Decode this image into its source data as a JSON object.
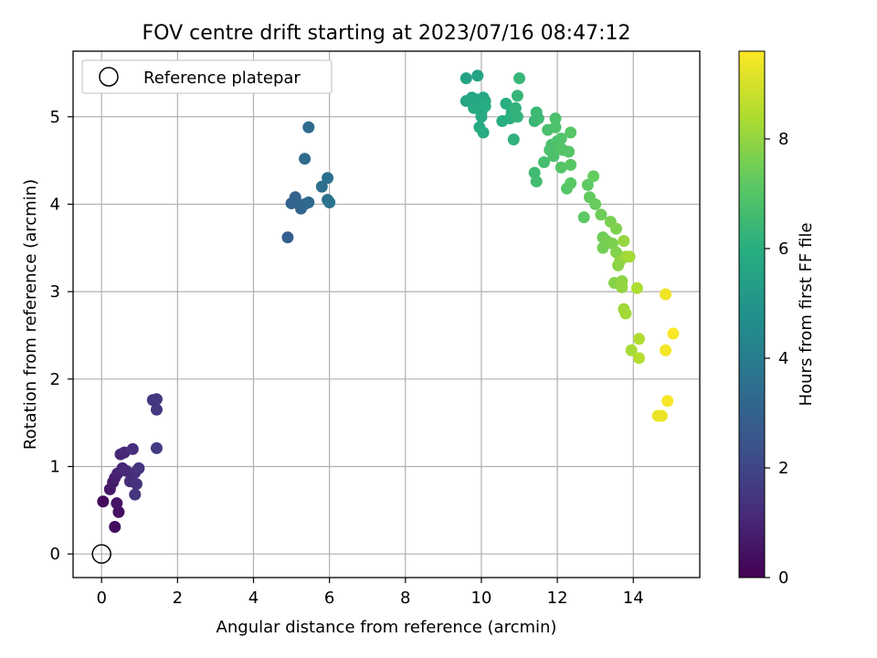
{
  "chart_data": {
    "type": "scatter",
    "title": "FOV centre drift starting at 2023/07/16 08:47:12",
    "xlabel": "Angular distance from reference (arcmin)",
    "ylabel": "Rotation from reference (arcmin)",
    "xlim": [
      -0.75,
      15.75
    ],
    "ylim": [
      -0.27,
      5.75
    ],
    "xticks": [
      0,
      2,
      4,
      6,
      8,
      10,
      12,
      14
    ],
    "yticks": [
      0,
      1,
      2,
      3,
      4,
      5
    ],
    "grid": true,
    "legend": {
      "placement": "top-left",
      "entries": [
        "Reference platepar"
      ]
    },
    "reference_point": {
      "x": 0,
      "y": 0
    },
    "colorbar": {
      "label": "Hours from first FF file",
      "range": [
        0,
        9.6
      ],
      "ticks": [
        0,
        2,
        4,
        6,
        8
      ],
      "colormap": "viridis"
    },
    "series": [
      {
        "points": [
          [
            0.04,
            0.6,
            0.2
          ],
          [
            0.35,
            0.31,
            0.3
          ],
          [
            0.45,
            0.48,
            0.4
          ],
          [
            0.4,
            0.58,
            0.5
          ],
          [
            0.22,
            0.74,
            0.6
          ],
          [
            0.3,
            0.82,
            0.7
          ],
          [
            0.35,
            0.87,
            0.8
          ],
          [
            0.42,
            0.92,
            0.9
          ],
          [
            0.55,
            0.98,
            1.0
          ],
          [
            0.5,
            1.14,
            1.05
          ],
          [
            0.6,
            1.16,
            1.1
          ],
          [
            0.65,
            0.95,
            1.15
          ],
          [
            0.75,
            0.83,
            1.2
          ],
          [
            0.82,
            1.2,
            1.25
          ],
          [
            0.88,
            0.93,
            1.3
          ],
          [
            0.92,
            0.8,
            1.35
          ],
          [
            0.98,
            0.98,
            1.4
          ],
          [
            0.88,
            0.68,
            1.45
          ],
          [
            1.35,
            1.76,
            1.5
          ],
          [
            1.45,
            1.77,
            1.55
          ],
          [
            1.45,
            1.65,
            1.6
          ],
          [
            1.45,
            1.21,
            1.65
          ],
          [
            4.9,
            3.62,
            2.9
          ],
          [
            5.0,
            4.01,
            3.0
          ],
          [
            5.1,
            4.08,
            3.05
          ],
          [
            5.2,
            4.0,
            3.1
          ],
          [
            5.25,
            3.95,
            3.15
          ],
          [
            5.35,
            4.0,
            3.2
          ],
          [
            5.45,
            4.02,
            3.25
          ],
          [
            5.35,
            4.52,
            3.3
          ],
          [
            5.45,
            4.88,
            3.35
          ],
          [
            5.8,
            4.2,
            3.45
          ],
          [
            5.95,
            4.3,
            3.5
          ],
          [
            5.95,
            4.05,
            3.55
          ],
          [
            6.0,
            4.02,
            3.6
          ],
          [
            9.6,
            5.44,
            5.5
          ],
          [
            9.9,
            5.47,
            5.55
          ],
          [
            9.6,
            5.18,
            5.6
          ],
          [
            9.75,
            5.22,
            5.62
          ],
          [
            9.85,
            5.2,
            5.65
          ],
          [
            9.9,
            5.15,
            5.67
          ],
          [
            9.95,
            5.1,
            5.7
          ],
          [
            10.0,
            5.05,
            5.72
          ],
          [
            10.05,
            5.22,
            5.75
          ],
          [
            10.1,
            5.18,
            5.77
          ],
          [
            9.8,
            5.1,
            5.8
          ],
          [
            10.0,
            5.0,
            5.82
          ],
          [
            9.95,
            4.88,
            5.85
          ],
          [
            10.05,
            4.82,
            5.87
          ],
          [
            10.1,
            5.12,
            5.9
          ],
          [
            10.55,
            4.95,
            5.95
          ],
          [
            10.65,
            5.15,
            6.0
          ],
          [
            10.75,
            4.98,
            6.05
          ],
          [
            10.8,
            5.05,
            6.1
          ],
          [
            10.85,
            4.74,
            6.15
          ],
          [
            10.9,
            5.1,
            6.2
          ],
          [
            10.95,
            5.0,
            6.25
          ],
          [
            10.95,
            5.24,
            6.3
          ],
          [
            11.0,
            5.44,
            6.35
          ],
          [
            11.4,
            4.95,
            6.4
          ],
          [
            11.45,
            5.05,
            6.45
          ],
          [
            11.5,
            4.98,
            6.5
          ],
          [
            11.4,
            4.36,
            6.55
          ],
          [
            11.45,
            4.26,
            6.6
          ],
          [
            11.65,
            4.48,
            6.65
          ],
          [
            11.75,
            4.85,
            6.7
          ],
          [
            11.8,
            4.62,
            6.75
          ],
          [
            11.85,
            4.68,
            6.77
          ],
          [
            11.9,
            4.55,
            6.8
          ],
          [
            11.95,
            4.98,
            6.82
          ],
          [
            11.95,
            4.88,
            6.85
          ],
          [
            12.0,
            4.72,
            6.87
          ],
          [
            12.05,
            4.65,
            6.9
          ],
          [
            12.1,
            4.75,
            6.92
          ],
          [
            12.1,
            4.42,
            6.95
          ],
          [
            12.15,
            4.62,
            6.97
          ],
          [
            12.25,
            4.18,
            7.0
          ],
          [
            12.3,
            4.6,
            7.02
          ],
          [
            12.35,
            4.82,
            7.05
          ],
          [
            12.35,
            4.45,
            7.07
          ],
          [
            12.35,
            4.24,
            7.1
          ],
          [
            12.7,
            3.85,
            7.15
          ],
          [
            12.8,
            4.22,
            7.2
          ],
          [
            12.85,
            4.08,
            7.25
          ],
          [
            12.95,
            4.32,
            7.3
          ],
          [
            13.0,
            4.0,
            7.35
          ],
          [
            13.15,
            3.88,
            7.4
          ],
          [
            13.2,
            3.62,
            7.45
          ],
          [
            13.2,
            3.5,
            7.5
          ],
          [
            13.3,
            3.58,
            7.55
          ],
          [
            13.4,
            3.8,
            7.6
          ],
          [
            13.45,
            3.55,
            7.65
          ],
          [
            13.55,
            3.72,
            7.7
          ],
          [
            13.55,
            3.45,
            7.75
          ],
          [
            13.5,
            3.1,
            7.8
          ],
          [
            13.6,
            3.3,
            7.85
          ],
          [
            13.65,
            3.35,
            7.9
          ],
          [
            13.7,
            3.12,
            7.95
          ],
          [
            13.7,
            3.05,
            8.0
          ],
          [
            13.75,
            3.58,
            8.05
          ],
          [
            13.8,
            3.4,
            8.1
          ],
          [
            13.75,
            2.8,
            8.15
          ],
          [
            13.8,
            2.75,
            8.2
          ],
          [
            13.9,
            3.4,
            8.25
          ],
          [
            13.95,
            2.33,
            8.3
          ],
          [
            14.1,
            3.04,
            8.4
          ],
          [
            14.15,
            2.46,
            8.45
          ],
          [
            14.15,
            2.24,
            8.5
          ],
          [
            14.65,
            1.58,
            9.3
          ],
          [
            14.75,
            1.58,
            9.35
          ],
          [
            14.85,
            2.97,
            9.4
          ],
          [
            14.85,
            2.33,
            9.45
          ],
          [
            14.9,
            1.75,
            9.5
          ],
          [
            15.05,
            2.52,
            9.55
          ]
        ]
      }
    ]
  }
}
